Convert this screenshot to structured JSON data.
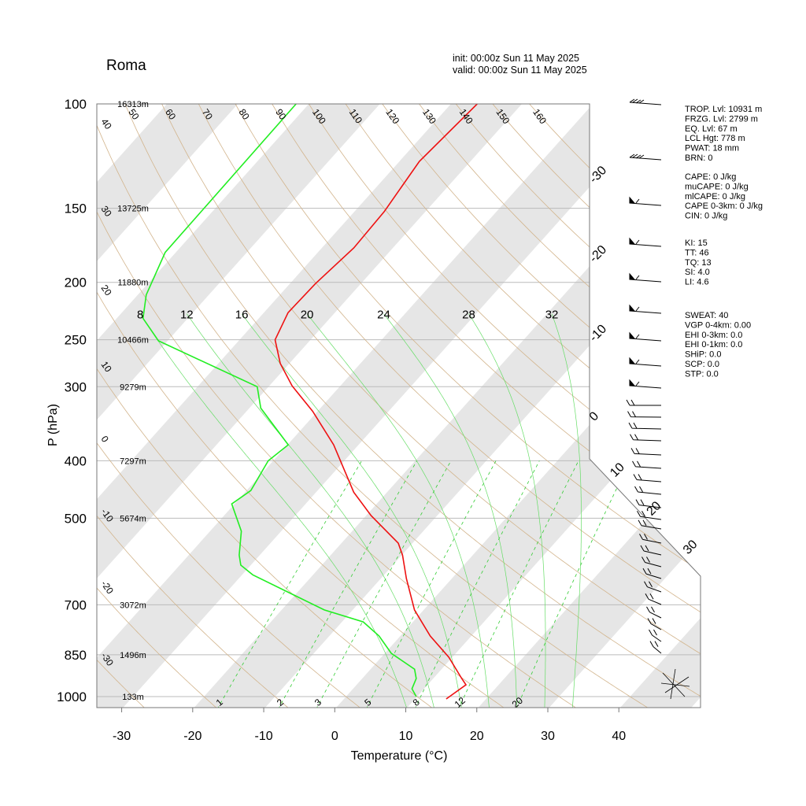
{
  "chart_data": {
    "type": "skewt",
    "title": "Roma",
    "init": "init: 00:00z Sun 11 May 2025",
    "valid": "valid: 00:00z Sun 11 May 2025",
    "xlabel": "Temperature (°C)",
    "ylabel": "P (hPa)",
    "xlim": [
      -33.5,
      51.5
    ],
    "ylim": [
      1050,
      100
    ],
    "log_y": true,
    "xticks": [
      -30,
      -20,
      -10,
      0,
      10,
      20,
      30,
      40
    ],
    "yticks": [
      100,
      150,
      200,
      250,
      300,
      400,
      500,
      700,
      850,
      1000
    ],
    "height_labels": [
      "16313m",
      "13725m",
      "11880m",
      "10466m",
      "9279m",
      "7297m",
      "5674m",
      "3072m",
      "1496m",
      "133m"
    ],
    "grid": true,
    "series": [
      {
        "color": "#ee1111",
        "pressure": [
          1009,
          955,
          932,
          858,
          790,
          714,
          632,
          577,
          551,
          495,
          452,
          376,
          330,
          299,
          274,
          250,
          225,
          201,
          175,
          152,
          125,
          100
        ],
        "values": [
          14.4,
          15.4,
          14.0,
          9.5,
          4.2,
          -1.3,
          -6.4,
          -9.9,
          -12.0,
          -19.3,
          -24.7,
          -33.5,
          -40.7,
          -46.8,
          -51.3,
          -55.0,
          -56.6,
          -56.4,
          -55.5,
          -55.8,
          -57.2,
          -56.3
        ]
      },
      {
        "color": "#22ee22",
        "pressure": [
          1000,
          970,
          932,
          899,
          845,
          790,
          748,
          714,
          623,
          600,
          577,
          526,
          473,
          449,
          400,
          376,
          326,
          300,
          251,
          230,
          210,
          178,
          100
        ],
        "values": [
          9.9,
          8.3,
          7.6,
          6.2,
          0.9,
          -3.0,
          -7.0,
          -14.0,
          -28.5,
          -31.4,
          -32.9,
          -35.6,
          -40.4,
          -39.4,
          -40.7,
          -39.9,
          -48.4,
          -51.6,
          -71.3,
          -76.3,
          -78.8,
          -81.5,
          -81.8
        ]
      }
    ],
    "isotherm_labels": [
      -30,
      -20,
      -10,
      0,
      10,
      20,
      30
    ],
    "dry_adiabats": [
      -30,
      -20,
      -10,
      0,
      10,
      20,
      30,
      40,
      50,
      60,
      70,
      80,
      90,
      100,
      110,
      120,
      130,
      140,
      150,
      160
    ],
    "moist_adiabats": [
      8,
      12,
      16,
      20,
      24,
      28,
      32
    ],
    "mixing_ratios": [
      1,
      2,
      3,
      5,
      8,
      12,
      20
    ],
    "band_color": "#e6e6e6",
    "dry_adiabat_color": "#d2b48c",
    "moist_adiabat_color": "#66dd66",
    "mixing_ratio_color": "#33cc33",
    "stats": [
      [
        "TROP. Lvl: 10931 m",
        "FRZG. Lvl: 2799 m",
        "EQ. Lvl: 67 m",
        "LCL Hgt: 778 m",
        "PWAT: 18 mm",
        "BRN: 0"
      ],
      [
        "CAPE: 0 J/kg",
        "muCAPE: 0 J/kg",
        "mlCAPE: 0 J/kg",
        "CAPE 0-3km: 0 J/kg",
        "CIN: 0 J/kg"
      ],
      [
        "KI: 15",
        "TT: 46",
        {
          "text": "TQ: 13",
          "color": "#f0a020"
        },
        "SI:  4.0",
        "LI:  4.6"
      ],
      [
        "SWEAT: 40",
        "VGP 0-4km: 0.00",
        "EHI 0-3km:  0.0",
        "EHI 0-1km:  0.0",
        "SHiP:  0.0",
        "SCP:  0.0",
        "STP:  0.0"
      ]
    ]
  }
}
